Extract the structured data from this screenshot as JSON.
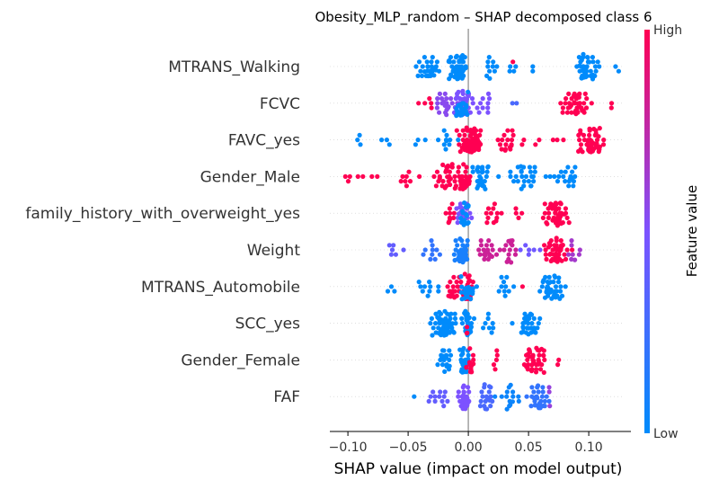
{
  "chart_data": {
    "type": "scatter",
    "subtype": "shap-beeswarm",
    "title": "Obesity_MLP_random – SHAP decomposed class 6",
    "xlabel": "SHAP value (impact on model output)",
    "xlim": [
      -0.115,
      0.135
    ],
    "xticks": [
      -0.1,
      -0.05,
      0.0,
      0.05,
      0.1
    ],
    "xtick_labels": [
      "−0.10",
      "−0.05",
      "0.00",
      "0.05",
      "0.10"
    ],
    "zero_line": 0.0,
    "colorbar": {
      "label": "Feature value",
      "high_label": "High",
      "low_label": "Low",
      "colors": {
        "low": "#008bfb",
        "mid": "#7c52ff",
        "high": "#ff0052"
      }
    },
    "features": [
      {
        "name": "MTRANS_Walking",
        "points": [
          {
            "x": -0.032,
            "v": 0.0,
            "n": 28,
            "s": 0.011
          },
          {
            "x": -0.008,
            "v": 0.0,
            "n": 60,
            "s": 0.008
          },
          {
            "x": 0.018,
            "v": 0.0,
            "n": 10,
            "s": 0.006
          },
          {
            "x": 0.035,
            "v": 0.0,
            "n": 4,
            "s": 0.006
          },
          {
            "x": 0.037,
            "v": 1.0,
            "n": 1,
            "s": 0.0
          },
          {
            "x": 0.053,
            "v": 0.0,
            "n": 2,
            "s": 0.004
          },
          {
            "x": 0.098,
            "v": 0.0,
            "n": 40,
            "s": 0.009
          },
          {
            "x": 0.126,
            "v": 0.0,
            "n": 2,
            "s": 0.004
          }
        ]
      },
      {
        "name": "FCVC",
        "points": [
          {
            "x": -0.035,
            "v": 1.0,
            "n": 5,
            "s": 0.006
          },
          {
            "x": -0.02,
            "v": 0.55,
            "n": 20,
            "s": 0.01
          },
          {
            "x": -0.005,
            "v": 0.5,
            "n": 50,
            "s": 0.007
          },
          {
            "x": -0.005,
            "v": 0.0,
            "n": 25,
            "s": 0.008
          },
          {
            "x": 0.015,
            "v": 0.5,
            "n": 10,
            "s": 0.007
          },
          {
            "x": 0.04,
            "v": 0.3,
            "n": 2,
            "s": 0.005
          },
          {
            "x": 0.09,
            "v": 1.0,
            "n": 45,
            "s": 0.011
          },
          {
            "x": 0.118,
            "v": 1.0,
            "n": 2,
            "s": 0.003
          }
        ]
      },
      {
        "name": "FAVC_yes",
        "points": [
          {
            "x": -0.09,
            "v": 0.0,
            "n": 3,
            "s": 0.003
          },
          {
            "x": -0.07,
            "v": 0.0,
            "n": 3,
            "s": 0.008
          },
          {
            "x": -0.045,
            "v": 0.0,
            "n": 3,
            "s": 0.008
          },
          {
            "x": -0.018,
            "v": 0.0,
            "n": 10,
            "s": 0.007
          },
          {
            "x": 0.002,
            "v": 1.0,
            "n": 75,
            "s": 0.008
          },
          {
            "x": 0.03,
            "v": 1.0,
            "n": 18,
            "s": 0.01
          },
          {
            "x": 0.065,
            "v": 1.0,
            "n": 6,
            "s": 0.012
          },
          {
            "x": 0.102,
            "v": 1.0,
            "n": 50,
            "s": 0.01
          }
        ]
      },
      {
        "name": "Gender_Male",
        "points": [
          {
            "x": -0.1,
            "v": 1.0,
            "n": 3,
            "s": 0.004
          },
          {
            "x": -0.08,
            "v": 1.0,
            "n": 4,
            "s": 0.007
          },
          {
            "x": -0.05,
            "v": 1.0,
            "n": 8,
            "s": 0.009
          },
          {
            "x": -0.02,
            "v": 1.0,
            "n": 30,
            "s": 0.01
          },
          {
            "x": -0.004,
            "v": 1.0,
            "n": 45,
            "s": 0.005
          },
          {
            "x": 0.012,
            "v": 0.0,
            "n": 30,
            "s": 0.008
          },
          {
            "x": 0.045,
            "v": 0.0,
            "n": 25,
            "s": 0.013
          },
          {
            "x": 0.08,
            "v": 0.0,
            "n": 20,
            "s": 0.011
          }
        ]
      },
      {
        "name": "family_history_with_overweight_yes",
        "points": [
          {
            "x": -0.015,
            "v": 1.0,
            "n": 10,
            "s": 0.005
          },
          {
            "x": -0.005,
            "v": 0.5,
            "n": 25,
            "s": 0.005
          },
          {
            "x": -0.003,
            "v": 0.0,
            "n": 15,
            "s": 0.004
          },
          {
            "x": 0.018,
            "v": 1.0,
            "n": 12,
            "s": 0.008
          },
          {
            "x": 0.042,
            "v": 1.0,
            "n": 4,
            "s": 0.006
          },
          {
            "x": 0.075,
            "v": 1.0,
            "n": 55,
            "s": 0.009
          }
        ]
      },
      {
        "name": "Weight",
        "points": [
          {
            "x": -0.06,
            "v": 0.4,
            "n": 6,
            "s": 0.008
          },
          {
            "x": -0.03,
            "v": 0.2,
            "n": 10,
            "s": 0.01
          },
          {
            "x": -0.005,
            "v": 0.1,
            "n": 45,
            "s": 0.006
          },
          {
            "x": 0.015,
            "v": 0.8,
            "n": 20,
            "s": 0.008
          },
          {
            "x": 0.035,
            "v": 0.8,
            "n": 15,
            "s": 0.01
          },
          {
            "x": 0.05,
            "v": 0.45,
            "n": 6,
            "s": 0.008
          },
          {
            "x": 0.072,
            "v": 1.0,
            "n": 45,
            "s": 0.009
          },
          {
            "x": 0.085,
            "v": 0.65,
            "n": 8,
            "s": 0.006
          }
        ]
      },
      {
        "name": "MTRANS_Automobile",
        "points": [
          {
            "x": -0.065,
            "v": 0.0,
            "n": 3,
            "s": 0.005
          },
          {
            "x": -0.035,
            "v": 0.0,
            "n": 10,
            "s": 0.01
          },
          {
            "x": -0.012,
            "v": 1.0,
            "n": 20,
            "s": 0.009
          },
          {
            "x": 0.0,
            "v": 1.0,
            "n": 30,
            "s": 0.004
          },
          {
            "x": -0.002,
            "v": 0.0,
            "n": 25,
            "s": 0.007
          },
          {
            "x": 0.03,
            "v": 0.0,
            "n": 10,
            "s": 0.009
          },
          {
            "x": 0.045,
            "v": 1.0,
            "n": 1,
            "s": 0.0
          },
          {
            "x": 0.07,
            "v": 0.0,
            "n": 40,
            "s": 0.01
          }
        ]
      },
      {
        "name": "SCC_yes",
        "points": [
          {
            "x": -0.02,
            "v": 0.0,
            "n": 60,
            "s": 0.011
          },
          {
            "x": 0.0,
            "v": 0.0,
            "n": 30,
            "s": 0.004
          },
          {
            "x": 0.018,
            "v": 0.0,
            "n": 8,
            "s": 0.005
          },
          {
            "x": 0.05,
            "v": 0.0,
            "n": 35,
            "s": 0.008
          },
          {
            "x": 0.0,
            "v": 1.0,
            "n": 3,
            "s": 0.002
          }
        ]
      },
      {
        "name": "Gender_Female",
        "points": [
          {
            "x": -0.02,
            "v": 0.0,
            "n": 20,
            "s": 0.008
          },
          {
            "x": -0.004,
            "v": 0.0,
            "n": 40,
            "s": 0.004
          },
          {
            "x": 0.002,
            "v": 1.0,
            "n": 15,
            "s": 0.004
          },
          {
            "x": 0.022,
            "v": 1.0,
            "n": 5,
            "s": 0.007
          },
          {
            "x": 0.055,
            "v": 1.0,
            "n": 40,
            "s": 0.009
          },
          {
            "x": 0.073,
            "v": 1.0,
            "n": 2,
            "s": 0.003
          }
        ]
      },
      {
        "name": "FAF",
        "points": [
          {
            "x": -0.045,
            "v": 0.0,
            "n": 1,
            "s": 0.0
          },
          {
            "x": -0.025,
            "v": 0.4,
            "n": 12,
            "s": 0.008
          },
          {
            "x": -0.003,
            "v": 0.5,
            "n": 45,
            "s": 0.005
          },
          {
            "x": 0.015,
            "v": 0.3,
            "n": 20,
            "s": 0.007
          },
          {
            "x": 0.035,
            "v": 0.05,
            "n": 15,
            "s": 0.008
          },
          {
            "x": 0.058,
            "v": 0.2,
            "n": 30,
            "s": 0.008
          },
          {
            "x": 0.068,
            "v": 0.6,
            "n": 3,
            "s": 0.002
          }
        ]
      }
    ]
  }
}
